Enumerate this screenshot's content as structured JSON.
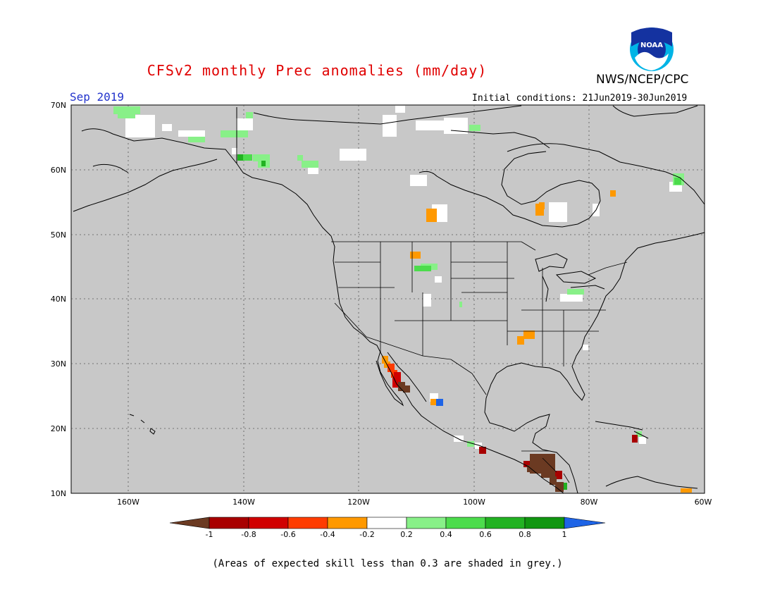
{
  "title": "CFSv2 monthly Prec anomalies (mm/day)",
  "agency": "NWS/NCEP/CPC",
  "logo_text": "NOAA",
  "valid_month": "Sep 2019",
  "initial_conditions": "Initial conditions: 21Jun2019-30Jun2019",
  "footnote": "(Areas of expected skill less than 0.3 are shaded in grey.)",
  "map": {
    "lon_range": [
      -170,
      -60
    ],
    "lat_range": [
      10,
      70
    ],
    "background_color": "#c8c8c8",
    "grid": "dotted",
    "lat_labels": [
      "70N",
      "60N",
      "50N",
      "40N",
      "30N",
      "20N",
      "10N"
    ],
    "lon_labels": [
      "160W",
      "140W",
      "120W",
      "100W",
      "80W",
      "60W"
    ]
  },
  "legend": {
    "labels": [
      "-1",
      "-0.8",
      "-0.6",
      "-0.4",
      "-0.2",
      "0.2",
      "0.4",
      "0.6",
      "0.8",
      "1"
    ],
    "colors": [
      "#6b3a22",
      "#a80000",
      "#d00000",
      "#ff3c00",
      "#ff9900",
      "#ffffff",
      "#88f088",
      "#4cdc4c",
      "#22b222",
      "#109610",
      "#1e64e6"
    ]
  }
}
